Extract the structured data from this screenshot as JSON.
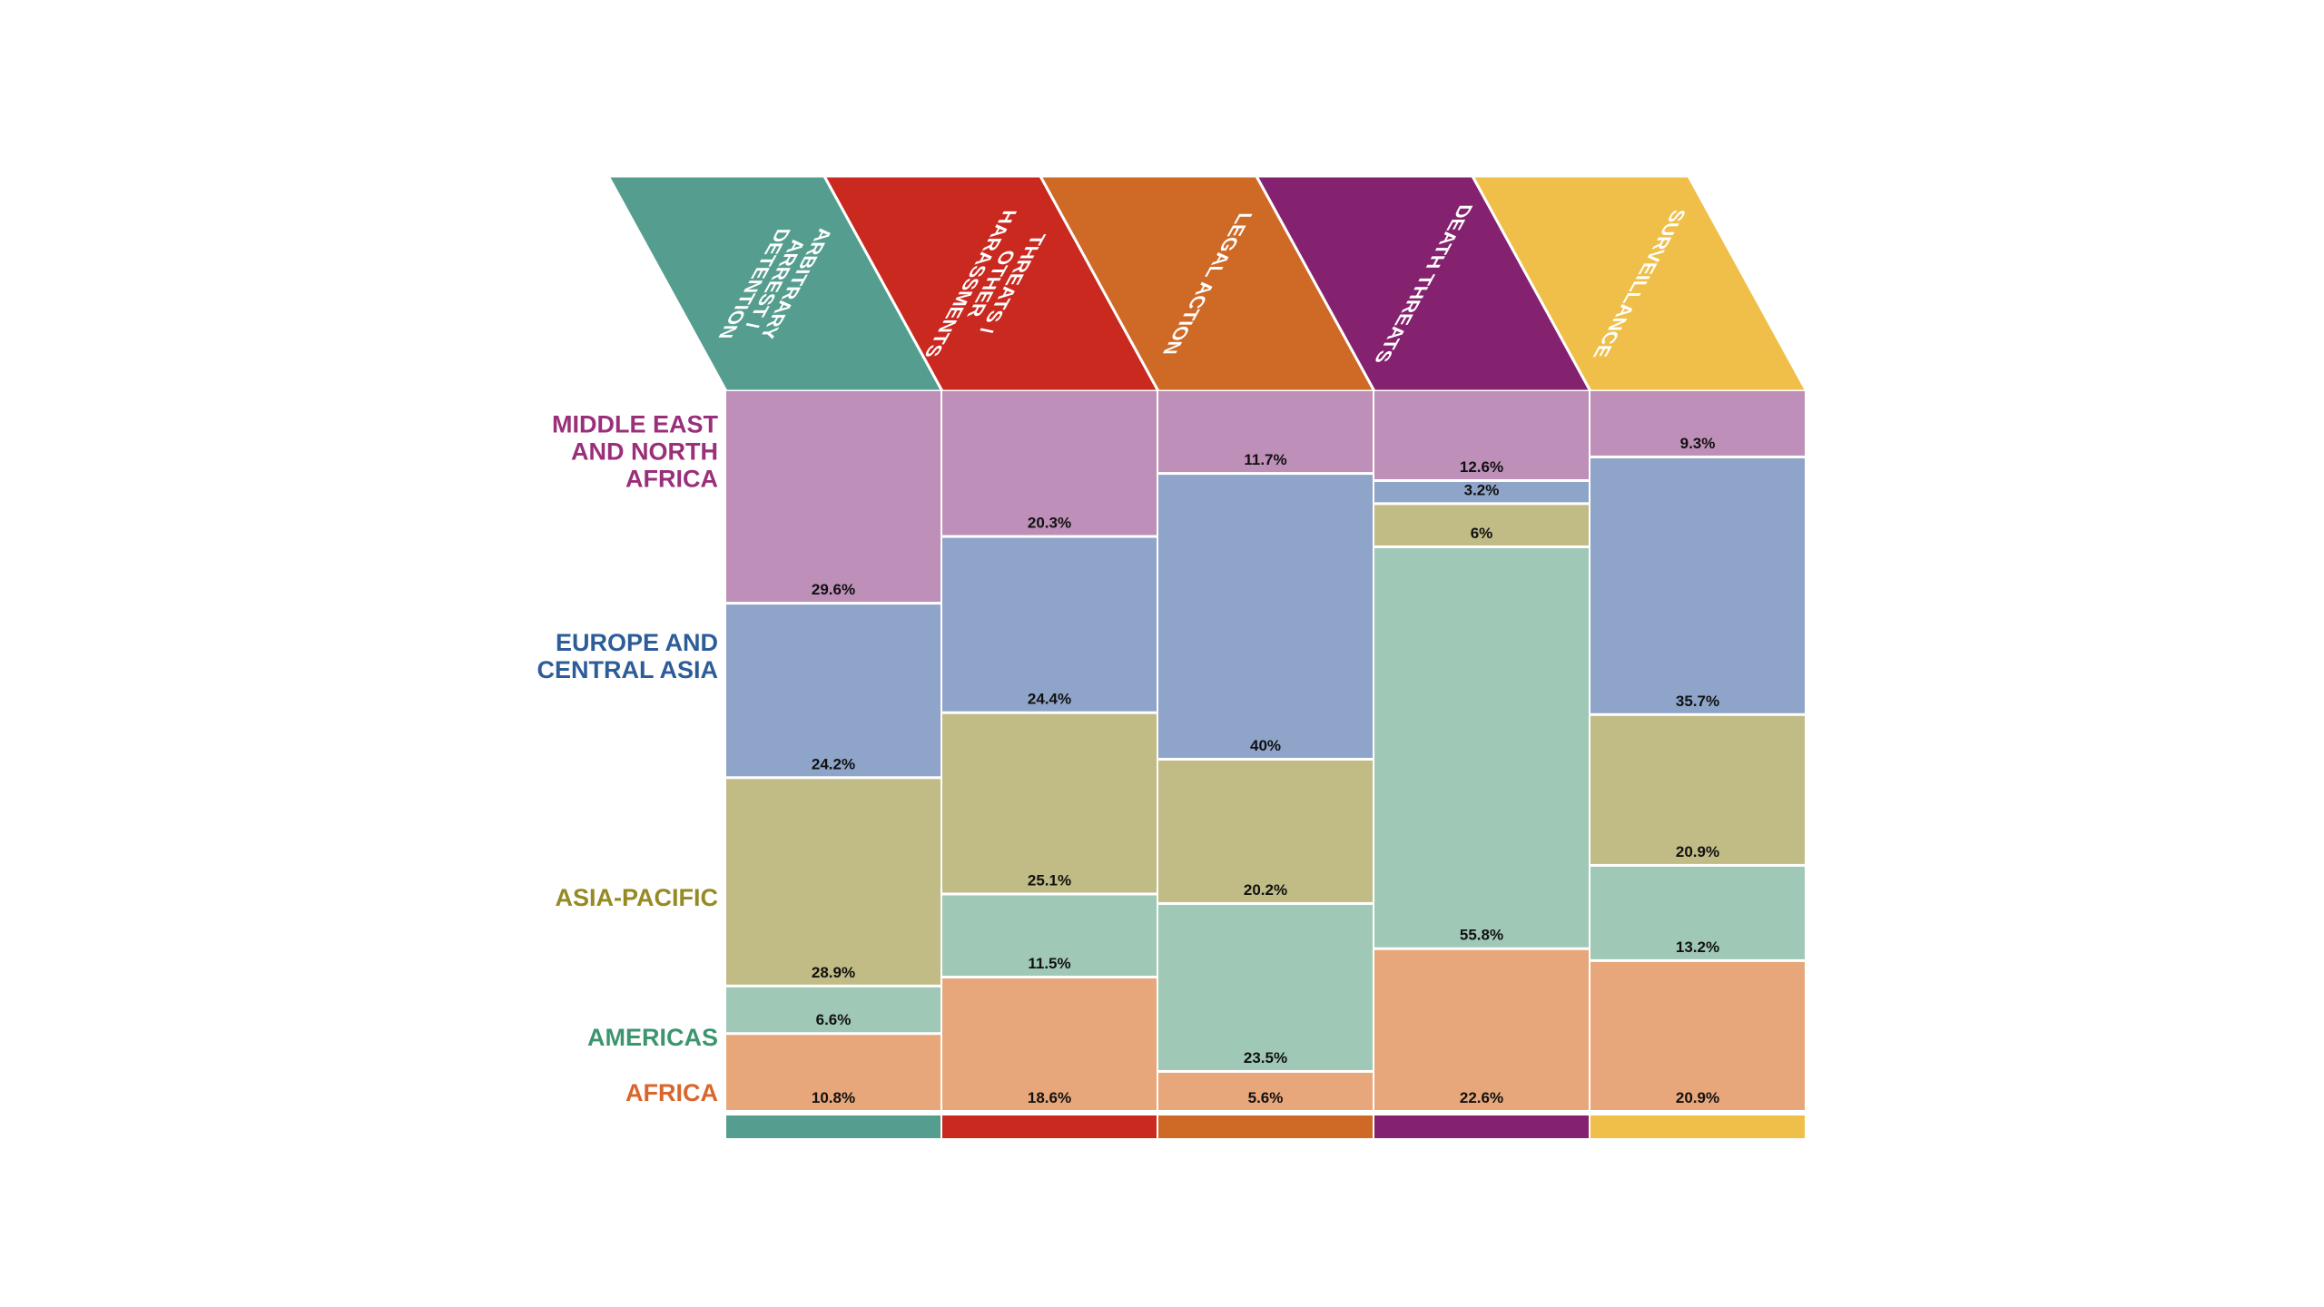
{
  "chart_data": {
    "type": "bar",
    "stacked": "100% mosaic",
    "categories": [
      [
        "ARBITRARY",
        "ARREST /",
        "DETENTION"
      ],
      [
        "THREATS /",
        "OTHER",
        "HARASSMENTS"
      ],
      [
        "LEGAL ACTION"
      ],
      [
        "DEATH THREATS"
      ],
      [
        "SURVEILLANCE"
      ]
    ],
    "category_colors": [
      "#559e8f",
      "#c9291f",
      "#cf6a26",
      "#85226f",
      "#efbf49"
    ],
    "series": [
      {
        "name": "MIDDLE EAST AND NORTH AFRICA",
        "name_lines": [
          "MIDDLE EAST",
          "AND NORTH",
          "AFRICA"
        ],
        "label_color": "#9a2f7a",
        "fill": "#be8fb8",
        "values": [
          29.6,
          20.3,
          11.7,
          12.6,
          9.3
        ],
        "labels": [
          "29.6%",
          "20.3%",
          "11.7%",
          "12.6%",
          "9.3%"
        ]
      },
      {
        "name": "EUROPE AND CENTRAL ASIA",
        "name_lines": [
          "EUROPE AND",
          "CENTRAL ASIA"
        ],
        "label_color": "#2d5d99",
        "fill": "#8fa4c9",
        "values": [
          24.2,
          24.4,
          40,
          3.2,
          35.7
        ],
        "labels": [
          "24.2%",
          "24.4%",
          "40%",
          "3.2%",
          "35.7%"
        ]
      },
      {
        "name": "ASIA-PACIFIC",
        "name_lines": [
          "ASIA-PACIFIC"
        ],
        "label_color": "#958a24",
        "fill": "#c1bc86",
        "values": [
          28.9,
          25.1,
          20.2,
          6,
          20.9
        ],
        "labels": [
          "28.9%",
          "25.1%",
          "20.2%",
          "6%",
          "20.9%"
        ]
      },
      {
        "name": "AMERICAS",
        "name_lines": [
          "AMERICAS"
        ],
        "label_color": "#3d9570",
        "fill": "#a0c8b6",
        "values": [
          6.6,
          11.5,
          23.5,
          55.8,
          13.2
        ],
        "labels": [
          "6.6%",
          "11.5%",
          "23.5%",
          "55.8%",
          "13.2%"
        ]
      },
      {
        "name": "AFRICA",
        "name_lines": [
          "AFRICA"
        ],
        "label_color": "#d9662c",
        "fill": "#e8a77a",
        "values": [
          10.8,
          18.6,
          5.6,
          22.6,
          20.9
        ],
        "labels": [
          "10.8%",
          "18.6%",
          "5.6%",
          "22.6%",
          "20.9%"
        ]
      }
    ],
    "title": "",
    "xlabel": "",
    "ylabel": "",
    "ylim": [
      0,
      100
    ],
    "legend": "left",
    "grid": false
  }
}
